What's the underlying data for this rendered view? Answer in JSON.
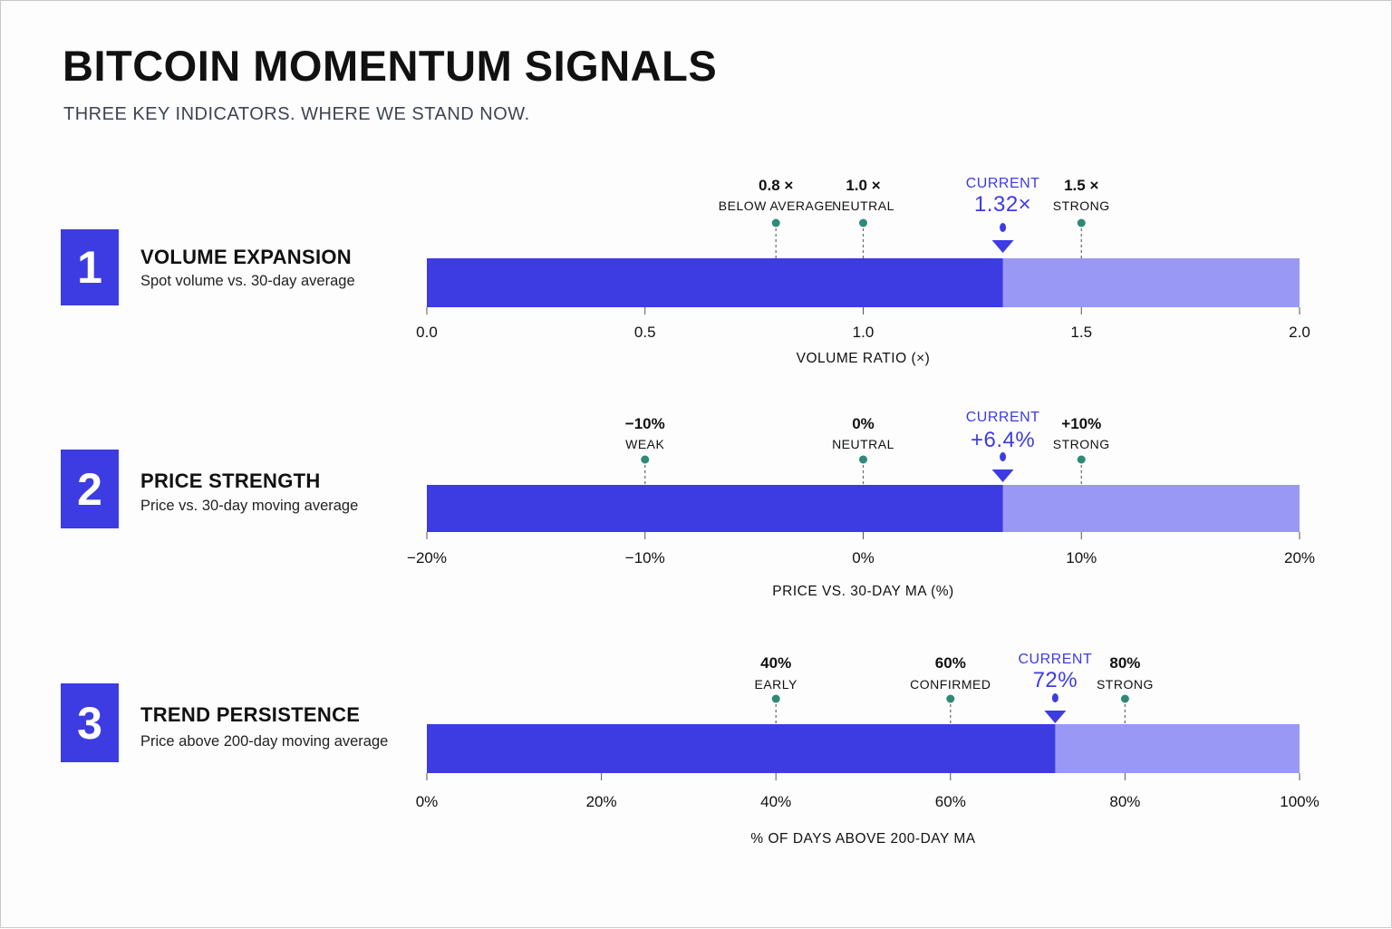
{
  "title": "BITCOIN MOMENTUM SIGNALS",
  "subtitle": "THREE KEY INDICATORS. WHERE WE STAND NOW.",
  "colors": {
    "bar": "#3d3ce2",
    "bar_light": "#9999f5",
    "marker": "#2f8a77",
    "current": "#3d3ce2"
  },
  "rows": [
    {
      "number": "1",
      "title": "VOLUME EXPANSION",
      "description": "Spot volume vs. 30-day average"
    },
    {
      "number": "2",
      "title": "PRICE STRENGTH",
      "description": "Price vs. 30-day moving average"
    },
    {
      "number": "3",
      "title": "TREND PERSISTENCE",
      "description": "Price above 200-day moving average"
    }
  ],
  "chart_data": [
    {
      "type": "bar",
      "xlabel": "VOLUME RATIO (×)",
      "xlim": [
        0,
        2
      ],
      "value": 1.32,
      "ticks": [
        {
          "value": 0,
          "label": "0.0"
        },
        {
          "value": 0.5,
          "label": "0.5"
        },
        {
          "value": 1.0,
          "label": "1.0"
        },
        {
          "value": 1.5,
          "label": "1.5"
        },
        {
          "value": 2.0,
          "label": "2.0"
        }
      ],
      "thresholds": [
        {
          "value": 0.8,
          "label": "0.8 ×",
          "name": "BELOW AVERAGE"
        },
        {
          "value": 1.0,
          "label": "1.0 ×",
          "name": "NEUTRAL"
        },
        {
          "value": 1.5,
          "label": "1.5 ×",
          "name": "STRONG"
        }
      ],
      "current_label": "CURRENT",
      "current_value": "1.32×"
    },
    {
      "type": "bar",
      "xlabel": "PRICE VS. 30-DAY MA (%)",
      "xlim": [
        -20,
        20
      ],
      "value": 6.4,
      "ticks": [
        {
          "value": -20,
          "label": "−20%"
        },
        {
          "value": -10,
          "label": "−10%"
        },
        {
          "value": 0,
          "label": "0%"
        },
        {
          "value": 10,
          "label": "10%"
        },
        {
          "value": 20,
          "label": "20%"
        }
      ],
      "thresholds": [
        {
          "value": -10,
          "label": "−10%",
          "name": "WEAK"
        },
        {
          "value": 0,
          "label": "0%",
          "name": "NEUTRAL"
        },
        {
          "value": 10,
          "label": "+10%",
          "name": "STRONG"
        }
      ],
      "current_label": "CURRENT",
      "current_value": "+6.4%"
    },
    {
      "type": "bar",
      "xlabel": "% OF DAYS ABOVE 200-DAY MA",
      "xlim": [
        0,
        100
      ],
      "value": 72,
      "ticks": [
        {
          "value": 0,
          "label": "0%"
        },
        {
          "value": 20,
          "label": "20%"
        },
        {
          "value": 40,
          "label": "40%"
        },
        {
          "value": 60,
          "label": "60%"
        },
        {
          "value": 80,
          "label": "80%"
        },
        {
          "value": 100,
          "label": "100%"
        }
      ],
      "thresholds": [
        {
          "value": 40,
          "label": "40%",
          "name": "EARLY"
        },
        {
          "value": 60,
          "label": "60%",
          "name": "CONFIRMED"
        },
        {
          "value": 80,
          "label": "80%",
          "name": "STRONG"
        }
      ],
      "current_label": "CURRENT",
      "current_value": "72%"
    }
  ]
}
